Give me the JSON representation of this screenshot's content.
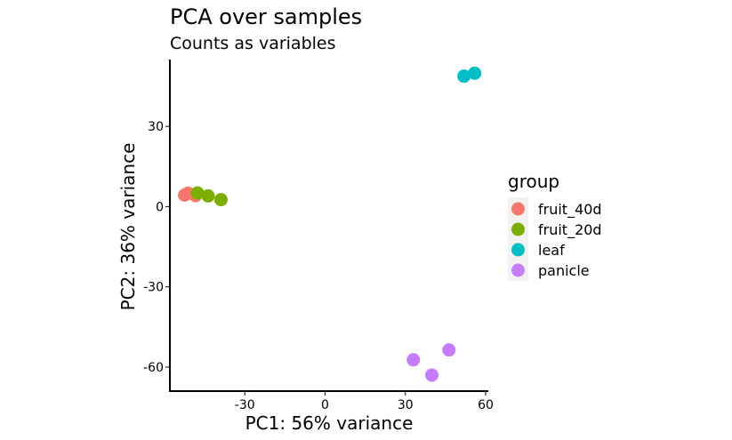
{
  "chart_data": {
    "type": "scatter",
    "title": "PCA over samples",
    "subtitle": "Counts as variables",
    "xlabel": "PC1: 56% variance",
    "ylabel": "PC2: 36% variance",
    "xlim": [
      -58,
      61
    ],
    "ylim": [
      -69,
      55
    ],
    "x_ticks": [
      -30,
      0,
      30,
      60
    ],
    "y_ticks": [
      30,
      0,
      -30,
      -60
    ],
    "x_tick_labels": [
      "-30",
      "0",
      "30",
      "60"
    ],
    "y_tick_labels": [
      "30",
      "0",
      "-30",
      "-60"
    ],
    "grid": false,
    "legend": {
      "title": "group",
      "position": "right"
    },
    "series": [
      {
        "name": "fruit_40d",
        "color": "#F8766D",
        "points": [
          {
            "x": -52.5,
            "y": 4.3
          },
          {
            "x": -51.2,
            "y": 5.0
          },
          {
            "x": -48.4,
            "y": 4.1
          }
        ]
      },
      {
        "name": "fruit_20d",
        "color": "#7CAE00",
        "points": [
          {
            "x": -47.7,
            "y": 5.1
          },
          {
            "x": -43.7,
            "y": 4.0
          },
          {
            "x": -38.9,
            "y": 2.6
          }
        ]
      },
      {
        "name": "leaf",
        "color": "#00BFC4",
        "points": [
          {
            "x": 51.9,
            "y": 48.8
          },
          {
            "x": 55.9,
            "y": 49.9
          }
        ]
      },
      {
        "name": "panicle",
        "color": "#C77CFF",
        "points": [
          {
            "x": 33.0,
            "y": -57.3
          },
          {
            "x": 39.9,
            "y": -63.0
          },
          {
            "x": 46.3,
            "y": -53.6
          }
        ]
      }
    ]
  }
}
